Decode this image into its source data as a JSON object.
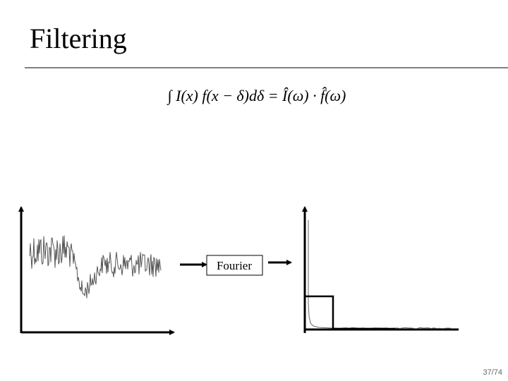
{
  "title": "Filtering",
  "formula": "∫ I(x) f(x − δ)dδ = Î(ω) · f̂(ω)",
  "box_label": "Fourier",
  "page_number": "37/74"
}
